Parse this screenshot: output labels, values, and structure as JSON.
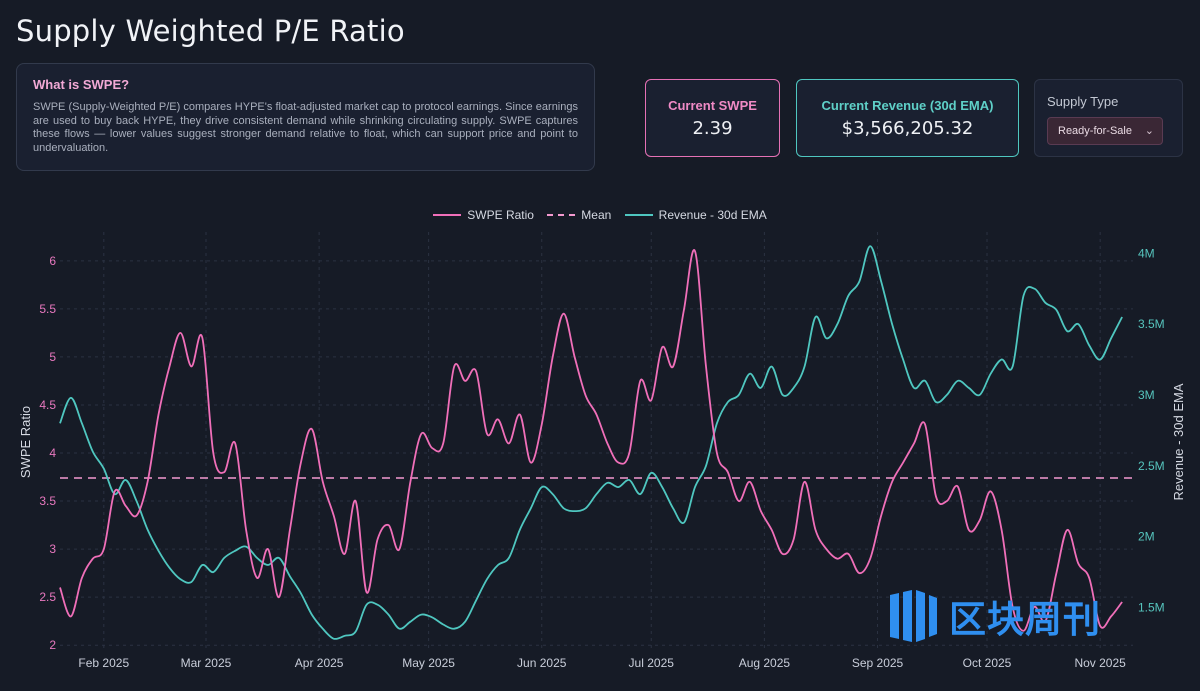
{
  "page": {
    "title": "Supply Weighted P/E Ratio"
  },
  "info": {
    "heading": "What is SWPE?",
    "body": "SWPE (Supply-Weighted P/E) compares HYPE's float-adjusted market cap to protocol earnings. Since earnings are used to buy back HYPE, they drive consistent demand while shrinking circulating supply. SWPE captures these flows — lower values suggest stronger demand relative to float, which can support price and point to undervaluation."
  },
  "stats": {
    "swpe_label": "Current SWPE",
    "swpe_value": "2.39",
    "revenue_label": "Current Revenue (30d EMA)",
    "revenue_value": "$3,566,205.32"
  },
  "supply": {
    "label": "Supply Type",
    "selected": "Ready-for-Sale"
  },
  "watermark": {
    "text": "区块周刊"
  },
  "colors": {
    "swpe": "#f06fb9",
    "mean": "#f49ad0",
    "revenue": "#4fc7c0",
    "background": "#161b26",
    "grid": "#2b3242"
  },
  "chart_data": {
    "type": "line",
    "legend": [
      "SWPE Ratio",
      "Mean",
      "Revenue - 30d EMA"
    ],
    "ylabel": "SWPE Ratio",
    "y2label": "Revenue - 30d EMA",
    "ylim": [
      1.95,
      6.3
    ],
    "y2lim": [
      1200000,
      4150000
    ],
    "xlim": [
      "2025-01-20",
      "2025-11-10"
    ],
    "x_ticks": [
      "Feb 2025",
      "Mar 2025",
      "Apr 2025",
      "May 2025",
      "Jun 2025",
      "Jul 2025",
      "Aug 2025",
      "Sep 2025",
      "Oct 2025",
      "Nov 2025"
    ],
    "x_tick_dates": [
      "2025-02-01",
      "2025-03-01",
      "2025-04-01",
      "2025-05-01",
      "2025-06-01",
      "2025-07-01",
      "2025-08-01",
      "2025-09-01",
      "2025-10-01",
      "2025-11-01"
    ],
    "y_ticks": [
      2,
      2.5,
      3,
      3.5,
      4,
      4.5,
      5,
      5.5,
      6
    ],
    "y_tick_labels": [
      "2",
      "2.5",
      "3",
      "3.5",
      "4",
      "4.5",
      "5",
      "5.5",
      "6"
    ],
    "y2_ticks": [
      1500000,
      2000000,
      2500000,
      3000000,
      3500000,
      4000000
    ],
    "y2_tick_labels": [
      "1.5M",
      "2M",
      "2.5M",
      "3M",
      "3.5M",
      "4M"
    ],
    "mean": 3.74,
    "series": [
      {
        "name": "SWPE Ratio",
        "axis": "left",
        "x": [
          "2025-01-20",
          "2025-01-23",
          "2025-01-26",
          "2025-01-29",
          "2025-02-01",
          "2025-02-04",
          "2025-02-07",
          "2025-02-10",
          "2025-02-13",
          "2025-02-16",
          "2025-02-19",
          "2025-02-22",
          "2025-02-25",
          "2025-02-28",
          "2025-03-03",
          "2025-03-06",
          "2025-03-09",
          "2025-03-12",
          "2025-03-15",
          "2025-03-18",
          "2025-03-21",
          "2025-03-24",
          "2025-03-27",
          "2025-03-30",
          "2025-04-02",
          "2025-04-05",
          "2025-04-08",
          "2025-04-11",
          "2025-04-14",
          "2025-04-17",
          "2025-04-20",
          "2025-04-23",
          "2025-04-26",
          "2025-04-29",
          "2025-05-02",
          "2025-05-05",
          "2025-05-08",
          "2025-05-11",
          "2025-05-14",
          "2025-05-17",
          "2025-05-20",
          "2025-05-23",
          "2025-05-26",
          "2025-05-29",
          "2025-06-01",
          "2025-06-04",
          "2025-06-07",
          "2025-06-10",
          "2025-06-13",
          "2025-06-16",
          "2025-06-19",
          "2025-06-22",
          "2025-06-25",
          "2025-06-28",
          "2025-07-01",
          "2025-07-04",
          "2025-07-07",
          "2025-07-10",
          "2025-07-13",
          "2025-07-16",
          "2025-07-19",
          "2025-07-22",
          "2025-07-25",
          "2025-07-28",
          "2025-07-31",
          "2025-08-03",
          "2025-08-06",
          "2025-08-09",
          "2025-08-12",
          "2025-08-15",
          "2025-08-18",
          "2025-08-21",
          "2025-08-24",
          "2025-08-27",
          "2025-08-30",
          "2025-09-02",
          "2025-09-05",
          "2025-09-08",
          "2025-09-11",
          "2025-09-14",
          "2025-09-17",
          "2025-09-20",
          "2025-09-23",
          "2025-09-26",
          "2025-09-29",
          "2025-10-02",
          "2025-10-05",
          "2025-10-08",
          "2025-10-11",
          "2025-10-14",
          "2025-10-17",
          "2025-10-20",
          "2025-10-23",
          "2025-10-26",
          "2025-10-29",
          "2025-11-01",
          "2025-11-04",
          "2025-11-07"
        ],
        "values": [
          2.6,
          2.3,
          2.7,
          2.9,
          3.0,
          3.6,
          3.45,
          3.35,
          3.7,
          4.4,
          4.9,
          5.25,
          4.9,
          5.2,
          4.0,
          3.8,
          4.1,
          3.2,
          2.7,
          3.0,
          2.5,
          3.2,
          3.9,
          4.25,
          3.7,
          3.35,
          2.95,
          3.5,
          2.55,
          3.1,
          3.25,
          3.0,
          3.7,
          4.2,
          4.05,
          4.1,
          4.9,
          4.75,
          4.85,
          4.2,
          4.35,
          4.1,
          4.4,
          3.9,
          4.3,
          5.0,
          5.45,
          5.0,
          4.6,
          4.4,
          4.1,
          3.9,
          4.0,
          4.75,
          4.55,
          5.1,
          4.9,
          5.5,
          6.1,
          4.9,
          4.0,
          3.8,
          3.5,
          3.7,
          3.4,
          3.2,
          2.95,
          3.1,
          3.7,
          3.2,
          3.0,
          2.9,
          2.95,
          2.75,
          2.9,
          3.35,
          3.7,
          3.9,
          4.1,
          4.3,
          3.55,
          3.5,
          3.65,
          3.2,
          3.3,
          3.6,
          3.2,
          2.4,
          2.15,
          2.4,
          2.25,
          2.75,
          3.2,
          2.85,
          2.7,
          2.2,
          2.3,
          2.45
        ]
      },
      {
        "name": "Revenue - 30d EMA",
        "axis": "right",
        "x": [
          "2025-01-20",
          "2025-01-23",
          "2025-01-26",
          "2025-01-29",
          "2025-02-01",
          "2025-02-04",
          "2025-02-07",
          "2025-02-10",
          "2025-02-13",
          "2025-02-16",
          "2025-02-19",
          "2025-02-22",
          "2025-02-25",
          "2025-02-28",
          "2025-03-03",
          "2025-03-06",
          "2025-03-09",
          "2025-03-12",
          "2025-03-15",
          "2025-03-18",
          "2025-03-21",
          "2025-03-24",
          "2025-03-27",
          "2025-03-30",
          "2025-04-02",
          "2025-04-05",
          "2025-04-08",
          "2025-04-11",
          "2025-04-14",
          "2025-04-17",
          "2025-04-20",
          "2025-04-23",
          "2025-04-26",
          "2025-04-29",
          "2025-05-02",
          "2025-05-05",
          "2025-05-08",
          "2025-05-11",
          "2025-05-14",
          "2025-05-17",
          "2025-05-20",
          "2025-05-23",
          "2025-05-26",
          "2025-05-29",
          "2025-06-01",
          "2025-06-04",
          "2025-06-07",
          "2025-06-10",
          "2025-06-13",
          "2025-06-16",
          "2025-06-19",
          "2025-06-22",
          "2025-06-25",
          "2025-06-28",
          "2025-07-01",
          "2025-07-04",
          "2025-07-07",
          "2025-07-10",
          "2025-07-13",
          "2025-07-16",
          "2025-07-19",
          "2025-07-22",
          "2025-07-25",
          "2025-07-28",
          "2025-07-31",
          "2025-08-03",
          "2025-08-06",
          "2025-08-09",
          "2025-08-12",
          "2025-08-15",
          "2025-08-18",
          "2025-08-21",
          "2025-08-24",
          "2025-08-27",
          "2025-08-30",
          "2025-09-02",
          "2025-09-05",
          "2025-09-08",
          "2025-09-11",
          "2025-09-14",
          "2025-09-17",
          "2025-09-20",
          "2025-09-23",
          "2025-09-26",
          "2025-09-29",
          "2025-10-02",
          "2025-10-05",
          "2025-10-08",
          "2025-10-11",
          "2025-10-14",
          "2025-10-17",
          "2025-10-20",
          "2025-10-23",
          "2025-10-26",
          "2025-10-29",
          "2025-11-01",
          "2025-11-04",
          "2025-11-07"
        ],
        "values": [
          2800000,
          2980000,
          2800000,
          2600000,
          2480000,
          2300000,
          2400000,
          2250000,
          2050000,
          1900000,
          1780000,
          1700000,
          1680000,
          1800000,
          1750000,
          1850000,
          1900000,
          1930000,
          1850000,
          1800000,
          1850000,
          1720000,
          1600000,
          1450000,
          1350000,
          1280000,
          1300000,
          1330000,
          1520000,
          1520000,
          1450000,
          1350000,
          1400000,
          1450000,
          1430000,
          1380000,
          1350000,
          1400000,
          1550000,
          1700000,
          1800000,
          1850000,
          2050000,
          2200000,
          2350000,
          2300000,
          2200000,
          2180000,
          2200000,
          2300000,
          2380000,
          2350000,
          2400000,
          2300000,
          2450000,
          2350000,
          2200000,
          2100000,
          2350000,
          2500000,
          2800000,
          2950000,
          3000000,
          3150000,
          3050000,
          3200000,
          3000000,
          3050000,
          3200000,
          3550000,
          3400000,
          3500000,
          3700000,
          3800000,
          4050000,
          3800000,
          3500000,
          3250000,
          3050000,
          3100000,
          2950000,
          3000000,
          3100000,
          3050000,
          3000000,
          3150000,
          3250000,
          3200000,
          3700000,
          3750000,
          3650000,
          3600000,
          3450000,
          3500000,
          3350000,
          3250000,
          3400000,
          3550000
        ]
      }
    ]
  }
}
